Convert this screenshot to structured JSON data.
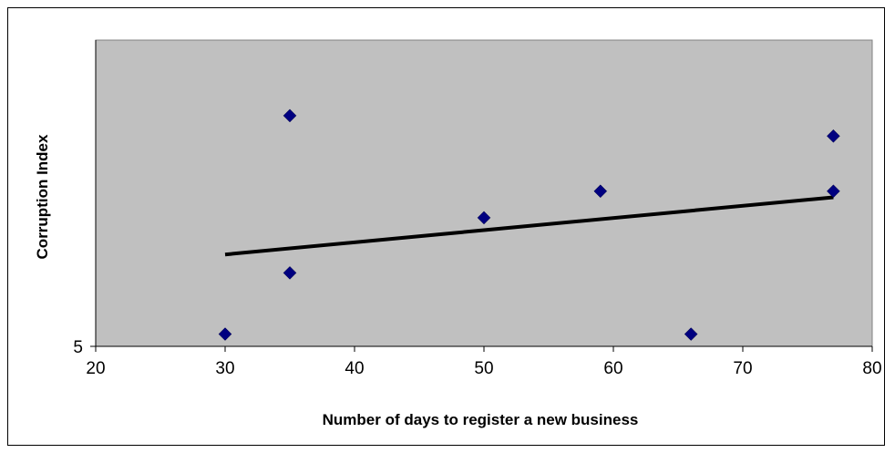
{
  "chart_data": {
    "type": "scatter",
    "title": "",
    "xlabel": "Number of days to register a new business",
    "ylabel": "Corruption Index",
    "xlim": [
      20,
      80
    ],
    "ylim": [
      5,
      6.5
    ],
    "x_ticks": [
      "20",
      "30",
      "40",
      "50",
      "60",
      "70",
      "80"
    ],
    "y_ticks": [
      "5"
    ],
    "grid": false,
    "legend": "none",
    "plot_background": "#c0c0c0",
    "marker_color": "#000080",
    "trendline_color": "#000000",
    "series": [
      {
        "marker": "diamond",
        "points": [
          {
            "x": 30,
            "y": 5.06
          },
          {
            "x": 35,
            "y": 6.13
          },
          {
            "x": 35,
            "y": 5.36
          },
          {
            "x": 50,
            "y": 5.63
          },
          {
            "x": 59,
            "y": 5.76
          },
          {
            "x": 66,
            "y": 5.06
          },
          {
            "x": 77,
            "y": 6.03
          },
          {
            "x": 77,
            "y": 5.76
          }
        ]
      }
    ],
    "trendline": {
      "type": "linear",
      "start": {
        "x": 30,
        "y": 5.45
      },
      "end": {
        "x": 77,
        "y": 5.73
      }
    }
  }
}
